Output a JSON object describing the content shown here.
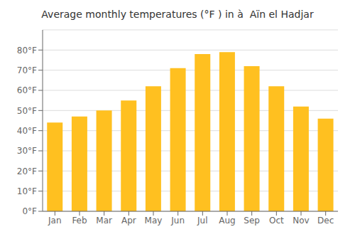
{
  "chart_data": {
    "type": "bar",
    "title": "Average monthly temperatures (°F ) in à  Aïn el Hadjar",
    "categories": [
      "Jan",
      "Feb",
      "Mar",
      "Apr",
      "May",
      "Jun",
      "Jul",
      "Aug",
      "Sep",
      "Oct",
      "Nov",
      "Dec"
    ],
    "values": [
      44,
      47,
      50,
      55,
      62,
      71,
      78,
      79,
      72,
      62,
      52,
      46
    ],
    "color": "#FFC020",
    "ylim": [
      0,
      90
    ],
    "yticks": [
      {
        "value": 0,
        "label": "0°F"
      },
      {
        "value": 10,
        "label": "10°F"
      },
      {
        "value": 20,
        "label": "20°F"
      },
      {
        "value": 30,
        "label": "30°F"
      },
      {
        "value": 40,
        "label": "40°F"
      },
      {
        "value": 50,
        "label": "50°F"
      },
      {
        "value": 60,
        "label": "60°F"
      },
      {
        "value": 70,
        "label": "70°F"
      },
      {
        "value": 80,
        "label": "80°F"
      }
    ],
    "grid": true
  }
}
